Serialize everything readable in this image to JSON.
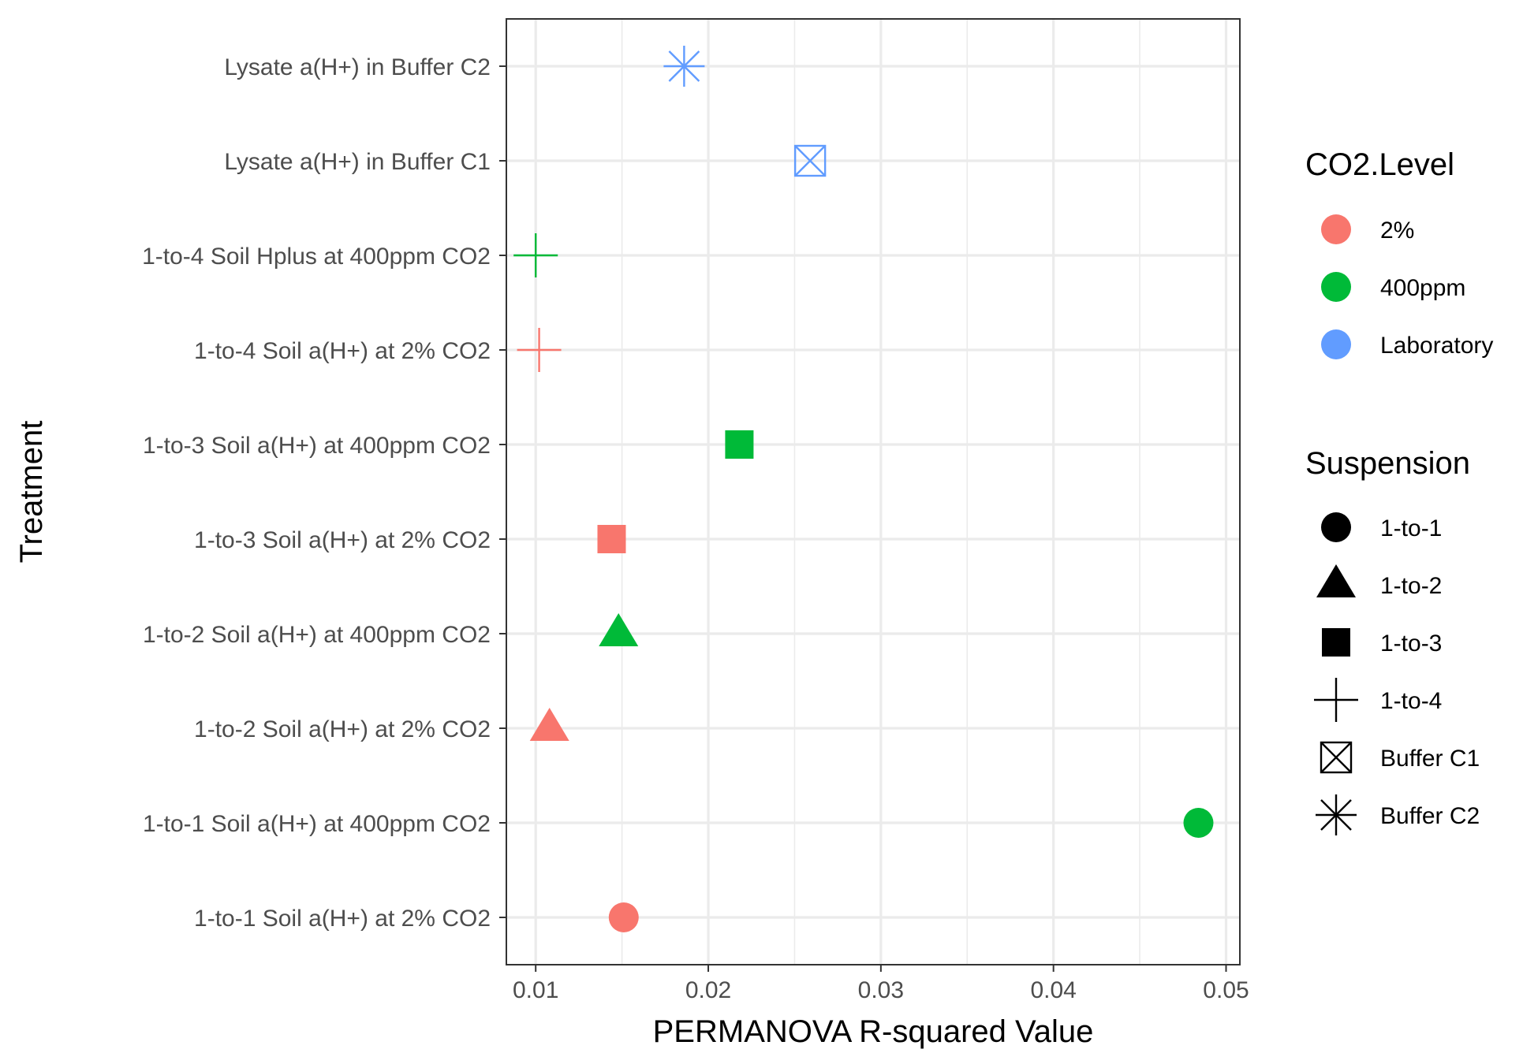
{
  "chart_data": {
    "type": "scatter",
    "xlabel": "PERMANOVA R-squared Value",
    "ylabel": "Treatment",
    "xlim": [
      0.0083,
      0.0508
    ],
    "x_ticks": [
      "0.01",
      "0.02",
      "0.03",
      "0.04",
      "0.05"
    ],
    "x_tick_values": [
      0.01,
      0.02,
      0.03,
      0.04,
      0.05
    ],
    "grid": true,
    "categories": [
      "1-to-1 Soil a(H+) at 2% CO2",
      "1-to-1 Soil a(H+) at 400ppm CO2",
      "1-to-2 Soil a(H+) at 2% CO2",
      "1-to-2 Soil a(H+) at 400ppm CO2",
      "1-to-3 Soil a(H+) at 2% CO2",
      "1-to-3 Soil a(H+) at 400ppm CO2",
      "1-to-4 Soil a(H+) at 2% CO2",
      "1-to-4 Soil Hplus at 400ppm CO2",
      "Lysate a(H+) in Buffer C1",
      "Lysate a(H+) in Buffer C2"
    ],
    "points": [
      {
        "category": "1-to-1 Soil a(H+) at 2% CO2",
        "x": 0.0151,
        "co2": "2%",
        "suspension": "1-to-1"
      },
      {
        "category": "1-to-1 Soil a(H+) at 400ppm CO2",
        "x": 0.0484,
        "co2": "400ppm",
        "suspension": "1-to-1"
      },
      {
        "category": "1-to-2 Soil a(H+) at 2% CO2",
        "x": 0.0108,
        "co2": "2%",
        "suspension": "1-to-2"
      },
      {
        "category": "1-to-2 Soil a(H+) at 400ppm CO2",
        "x": 0.0148,
        "co2": "400ppm",
        "suspension": "1-to-2"
      },
      {
        "category": "1-to-3 Soil a(H+) at 2% CO2",
        "x": 0.0144,
        "co2": "2%",
        "suspension": "1-to-3"
      },
      {
        "category": "1-to-3 Soil a(H+) at 400ppm CO2",
        "x": 0.0218,
        "co2": "400ppm",
        "suspension": "1-to-3"
      },
      {
        "category": "1-to-4 Soil a(H+) at 2% CO2",
        "x": 0.0102,
        "co2": "2%",
        "suspension": "1-to-4"
      },
      {
        "category": "1-to-4 Soil Hplus at 400ppm CO2",
        "x": 0.01,
        "co2": "400ppm",
        "suspension": "1-to-4"
      },
      {
        "category": "Lysate a(H+) in Buffer C1",
        "x": 0.0259,
        "co2": "Laboratory",
        "suspension": "Buffer C1"
      },
      {
        "category": "Lysate a(H+) in Buffer C2",
        "x": 0.0186,
        "co2": "Laboratory",
        "suspension": "Buffer C2"
      }
    ],
    "legends": [
      {
        "title": "CO2.Level",
        "placement": "right",
        "entries": [
          {
            "label": "2%",
            "color": "#F8766D",
            "shape": "circle"
          },
          {
            "label": "400ppm",
            "color": "#00BA38",
            "shape": "circle"
          },
          {
            "label": "Laboratory",
            "color": "#619CFF",
            "shape": "circle"
          }
        ]
      },
      {
        "title": "Suspension",
        "placement": "right",
        "entries": [
          {
            "label": "1-to-1",
            "color": "#000000",
            "shape": "circle"
          },
          {
            "label": "1-to-2",
            "color": "#000000",
            "shape": "triangle"
          },
          {
            "label": "1-to-3",
            "color": "#000000",
            "shape": "square"
          },
          {
            "label": "1-to-4",
            "color": "#000000",
            "shape": "plus"
          },
          {
            "label": "Buffer C1",
            "color": "#000000",
            "shape": "boxcross"
          },
          {
            "label": "Buffer C2",
            "color": "#000000",
            "shape": "asterisk"
          }
        ]
      }
    ],
    "colors": {
      "2%": "#F8766D",
      "400ppm": "#00BA38",
      "Laboratory": "#619CFF"
    },
    "shapes": {
      "1-to-1": "circle",
      "1-to-2": "triangle",
      "1-to-3": "square",
      "1-to-4": "plus",
      "Buffer C1": "boxcross",
      "Buffer C2": "asterisk"
    }
  }
}
